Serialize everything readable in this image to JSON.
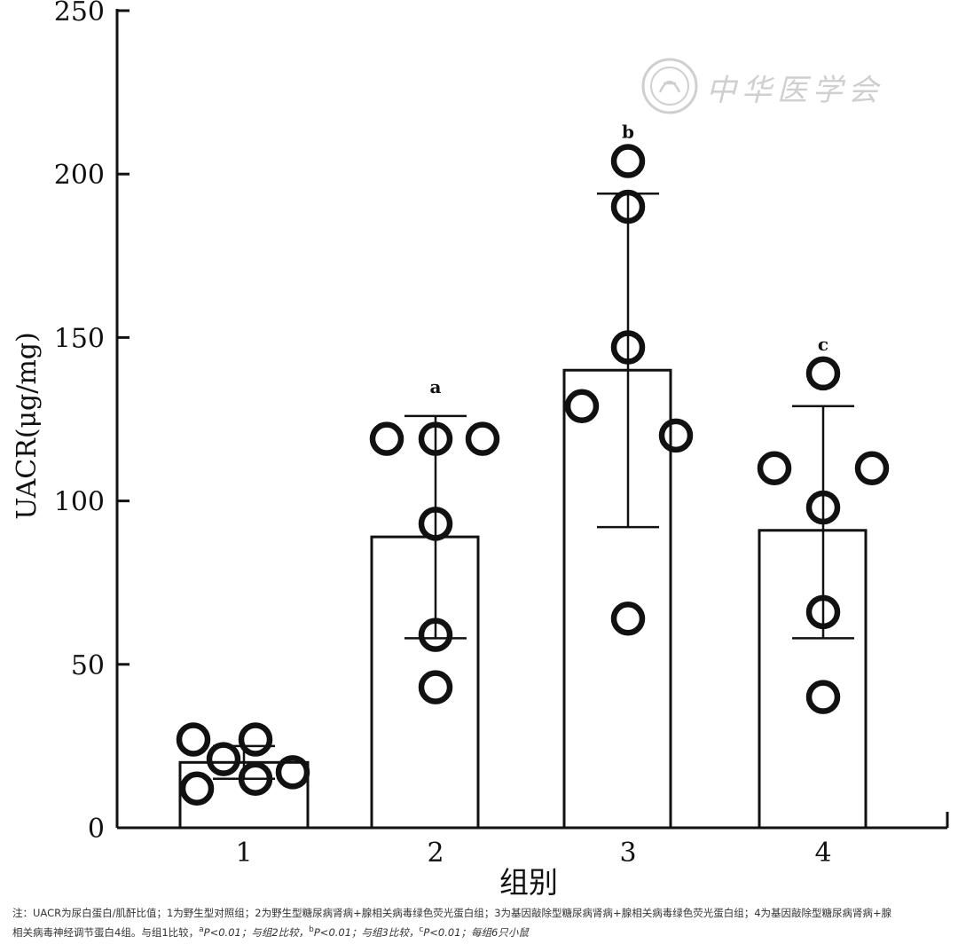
{
  "chart_data": {
    "type": "bar",
    "title": "",
    "xlabel": "组别",
    "ylabel": "UACR(μg/mg)",
    "ylim": [
      0,
      250
    ],
    "yticks": [
      0,
      50,
      100,
      150,
      200,
      250
    ],
    "categories": [
      "1",
      "2",
      "3",
      "4"
    ],
    "values": [
      20,
      89,
      140,
      91
    ],
    "error_upper": [
      25,
      126,
      194,
      129
    ],
    "error_lower": [
      15,
      58,
      92,
      58
    ],
    "points": [
      [
        27,
        21,
        27,
        12,
        15,
        17
      ],
      [
        119,
        119,
        119,
        93,
        59,
        43
      ],
      [
        204,
        190,
        147,
        129,
        120,
        64
      ],
      [
        139,
        110,
        110,
        98,
        66,
        40
      ]
    ],
    "significance": [
      "",
      "a",
      "b",
      "c"
    ],
    "grid": false,
    "legend": "none"
  },
  "watermark_text": "中华医学会",
  "note": {
    "line1": "注：UACR为尿白蛋白/肌酐比值；1为野生型对照组；2为野生型糖尿病肾病+腺相关病毒绿色荧光蛋白组；3为基因敲除型糖尿病肾病+腺相关病毒绿色荧光蛋白组；4为基因敲除型糖尿病肾病+腺",
    "line2_a": "相关病毒神经调节蛋白4组。与组1比较，",
    "sup_a": "a",
    "p_a": "P<0.01；与组2比较，",
    "sup_b": "b",
    "p_b": "P<0.01；与组3比较，",
    "sup_c": "c",
    "p_c": "P<0.01；每组6只小鼠"
  }
}
